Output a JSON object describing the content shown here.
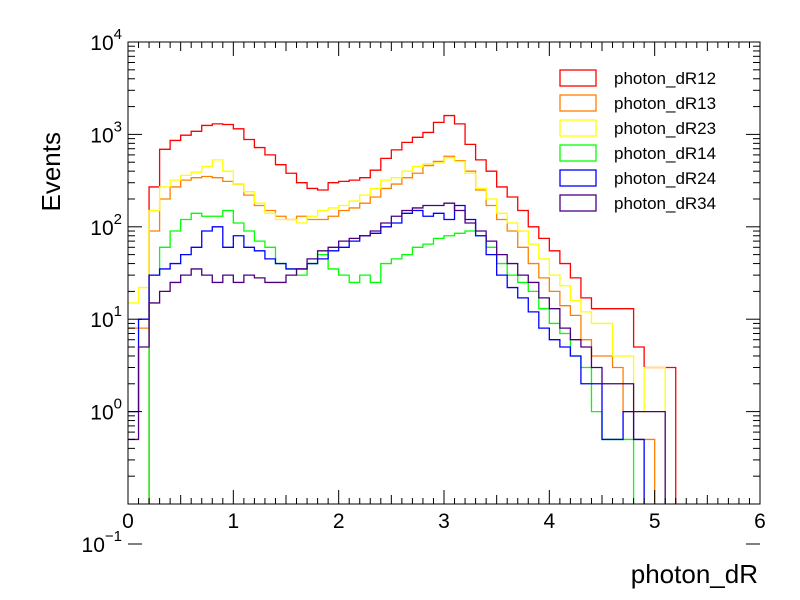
{
  "chart_data": {
    "type": "histogram",
    "title": "",
    "xlabel": "photon_dR",
    "ylabel": "Events",
    "xlim": [
      0,
      6
    ],
    "ylim": [
      0.1,
      10000
    ],
    "yscale": "log",
    "bin_width": 0.1,
    "x_ticks": [
      "0",
      "1",
      "2",
      "3",
      "4",
      "5",
      "6"
    ],
    "y_ticks": [
      {
        "base": "10",
        "exp": "−1",
        "value": 0.1
      },
      {
        "base": "10",
        "exp": "0",
        "value": 1
      },
      {
        "base": "10",
        "exp": "1",
        "value": 10
      },
      {
        "base": "10",
        "exp": "2",
        "value": 100
      },
      {
        "base": "10",
        "exp": "3",
        "value": 1000
      },
      {
        "base": "10",
        "exp": "4",
        "value": 10000
      }
    ],
    "legend_position": "top-right",
    "grid": false,
    "series": [
      {
        "name": "photon_dR12",
        "color": "#ff0000",
        "values": [
          0,
          0,
          270,
          690,
          860,
          980,
          1080,
          1250,
          1300,
          1280,
          1150,
          880,
          720,
          600,
          470,
          380,
          300,
          260,
          250,
          300,
          310,
          320,
          340,
          410,
          550,
          680,
          820,
          930,
          1050,
          1350,
          1600,
          1300,
          780,
          530,
          400,
          270,
          210,
          150,
          100,
          75,
          55,
          40,
          28,
          17,
          13,
          13,
          13,
          13,
          5,
          3,
          3,
          3,
          0,
          0,
          0,
          0,
          0,
          0,
          0,
          0
        ]
      },
      {
        "name": "photon_dR13",
        "color": "#ff8000",
        "values": [
          8,
          8,
          90,
          200,
          270,
          320,
          340,
          350,
          340,
          310,
          290,
          220,
          170,
          150,
          130,
          120,
          130,
          120,
          120,
          130,
          150,
          160,
          180,
          210,
          260,
          290,
          340,
          380,
          460,
          510,
          580,
          520,
          400,
          250,
          170,
          120,
          90,
          60,
          40,
          28,
          20,
          14,
          11,
          6,
          4,
          4,
          3,
          1,
          0.5,
          0.5,
          0,
          0,
          0,
          0,
          0,
          0,
          0,
          0,
          0,
          0
        ]
      },
      {
        "name": "photon_dR23",
        "color": "#ffff00",
        "values": [
          15,
          22,
          150,
          270,
          320,
          360,
          390,
          450,
          530,
          400,
          290,
          240,
          180,
          140,
          120,
          120,
          110,
          130,
          150,
          160,
          170,
          190,
          220,
          260,
          320,
          340,
          400,
          450,
          480,
          490,
          560,
          510,
          380,
          260,
          200,
          140,
          110,
          90,
          65,
          45,
          30,
          23,
          16,
          12,
          9,
          9,
          4,
          4,
          1,
          3,
          3,
          0,
          0,
          0,
          0,
          0,
          0,
          0,
          0,
          0
        ]
      },
      {
        "name": "photon_dR14",
        "color": "#00ff00",
        "values": [
          0,
          0,
          30,
          60,
          90,
          120,
          140,
          130,
          130,
          150,
          110,
          90,
          70,
          60,
          40,
          35,
          30,
          40,
          50,
          35,
          30,
          25,
          30,
          25,
          40,
          45,
          50,
          60,
          65,
          75,
          80,
          85,
          90,
          80,
          60,
          40,
          30,
          25,
          20,
          13,
          9,
          7,
          4,
          3,
          1,
          0.5,
          0.5,
          0.5,
          0,
          0,
          0,
          0,
          0,
          0,
          0,
          0,
          0,
          0,
          0,
          0
        ]
      },
      {
        "name": "photon_dR24",
        "color": "#0000ff",
        "values": [
          1,
          10,
          30,
          35,
          40,
          50,
          60,
          90,
          100,
          60,
          80,
          60,
          55,
          45,
          40,
          35,
          35,
          40,
          45,
          55,
          60,
          70,
          80,
          85,
          100,
          110,
          140,
          150,
          130,
          140,
          120,
          170,
          120,
          80,
          50,
          30,
          22,
          17,
          12,
          8,
          6,
          5,
          4,
          2,
          2,
          0.5,
          0.5,
          1,
          0.5,
          0,
          0,
          0,
          0,
          0,
          0,
          0,
          0,
          0,
          0,
          0
        ]
      },
      {
        "name": "photon_dR34",
        "color": "#4b0082",
        "values": [
          0.5,
          5,
          15,
          20,
          25,
          30,
          35,
          30,
          25,
          30,
          25,
          30,
          28,
          25,
          25,
          30,
          35,
          45,
          55,
          60,
          70,
          75,
          80,
          90,
          110,
          130,
          150,
          160,
          170,
          170,
          180,
          150,
          110,
          90,
          70,
          50,
          40,
          30,
          25,
          17,
          13,
          8,
          6,
          5,
          3,
          2,
          2,
          2,
          1,
          1,
          1,
          0,
          0,
          0,
          0,
          0,
          0,
          0,
          0,
          0
        ]
      }
    ]
  }
}
